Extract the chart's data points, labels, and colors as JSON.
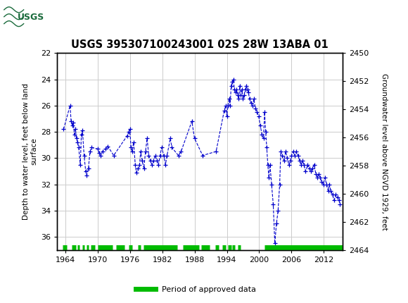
{
  "title": "USGS 395307100243001 02S 28W 13ABA 01",
  "ylabel_left": "Depth to water level, feet below land\nsurface",
  "ylabel_right": "Groundwater level above NGVD 1929, feet",
  "ylim_left": [
    22,
    37
  ],
  "ylim_right": [
    2464,
    2450
  ],
  "xlim": [
    1962.5,
    2015.5
  ],
  "xticks": [
    1964,
    1970,
    1976,
    1982,
    1988,
    1994,
    2000,
    2006,
    2012
  ],
  "yticks_left": [
    22,
    24,
    26,
    28,
    30,
    32,
    34,
    36
  ],
  "yticks_right": [
    2464,
    2462,
    2460,
    2458,
    2456,
    2454,
    2452,
    2450
  ],
  "header_color": "#1a6b3c",
  "plot_color": "#0000cc",
  "approved_color": "#00bb00",
  "background_color": "#ffffff",
  "grid_color": "#cccccc",
  "data_x": [
    1963.7,
    1964.9,
    1965.1,
    1965.3,
    1965.5,
    1965.7,
    1965.9,
    1966.1,
    1966.3,
    1966.5,
    1966.8,
    1967.0,
    1967.2,
    1967.5,
    1967.8,
    1968.0,
    1968.3,
    1968.6,
    1968.9,
    1970.0,
    1970.3,
    1970.6,
    1970.9,
    1971.5,
    1971.9,
    1973.0,
    1975.5,
    1975.8,
    1976.0,
    1976.2,
    1976.4,
    1976.7,
    1977.0,
    1977.2,
    1977.5,
    1977.8,
    1978.0,
    1978.3,
    1978.6,
    1978.9,
    1979.2,
    1979.5,
    1979.8,
    1980.1,
    1980.4,
    1980.7,
    1981.0,
    1981.3,
    1981.6,
    1981.9,
    1982.3,
    1982.6,
    1982.9,
    1983.5,
    1983.8,
    1985.0,
    1985.5,
    1987.5,
    1988.0,
    1989.5,
    1992.0,
    1993.5,
    1993.8,
    1994.0,
    1994.2,
    1994.4,
    1994.6,
    1994.8,
    1995.0,
    1995.2,
    1995.4,
    1995.6,
    1995.8,
    1996.0,
    1996.2,
    1996.4,
    1996.6,
    1996.8,
    1997.0,
    1997.2,
    1997.4,
    1997.6,
    1997.8,
    1998.0,
    1998.2,
    1998.5,
    1998.8,
    1999.0,
    1999.3,
    1999.6,
    1999.9,
    2000.2,
    2000.5,
    2000.8,
    2001.0,
    2001.2,
    2001.4,
    2001.6,
    2001.8,
    2002.0,
    2002.3,
    2002.6,
    2002.9,
    2003.2,
    2003.5,
    2003.8,
    2004.0,
    2004.3,
    2004.6,
    2004.9,
    2005.2,
    2005.5,
    2005.8,
    2006.0,
    2006.3,
    2006.6,
    2006.9,
    2007.2,
    2007.5,
    2007.8,
    2008.0,
    2008.3,
    2008.6,
    2009.0,
    2009.3,
    2009.6,
    2009.9,
    2010.2,
    2010.5,
    2010.8,
    2011.0,
    2011.3,
    2011.6,
    2011.9,
    2012.2,
    2012.5,
    2012.8,
    2013.0,
    2013.3,
    2013.6,
    2013.9,
    2014.2,
    2014.5,
    2014.8,
    2015.0
  ],
  "data_y": [
    27.8,
    26.0,
    27.2,
    27.5,
    27.3,
    28.2,
    27.8,
    28.5,
    28.8,
    29.2,
    30.5,
    28.2,
    27.9,
    29.8,
    31.0,
    31.3,
    30.8,
    29.5,
    29.2,
    29.3,
    29.6,
    29.8,
    29.5,
    29.3,
    29.1,
    29.8,
    28.3,
    28.0,
    27.8,
    29.2,
    29.5,
    28.8,
    30.5,
    31.1,
    30.8,
    30.5,
    29.5,
    30.2,
    30.8,
    29.5,
    28.5,
    29.8,
    30.2,
    30.5,
    30.2,
    29.8,
    30.2,
    30.5,
    29.8,
    29.2,
    29.8,
    30.5,
    29.8,
    28.5,
    29.2,
    29.8,
    29.5,
    27.2,
    28.5,
    29.8,
    29.5,
    26.4,
    26.0,
    26.8,
    26.0,
    25.5,
    26.0,
    24.5,
    24.2,
    24.0,
    24.8,
    25.0,
    24.8,
    25.2,
    25.5,
    24.5,
    25.2,
    24.8,
    25.5,
    25.2,
    24.8,
    24.5,
    24.8,
    25.0,
    25.5,
    25.8,
    26.0,
    25.5,
    26.2,
    26.5,
    26.8,
    27.5,
    28.2,
    28.5,
    26.5,
    28.0,
    29.2,
    30.5,
    31.5,
    30.5,
    32.0,
    33.5,
    36.5,
    35.0,
    34.0,
    32.0,
    29.5,
    29.8,
    30.2,
    29.5,
    30.0,
    30.5,
    30.2,
    29.8,
    29.5,
    29.8,
    29.5,
    29.8,
    30.2,
    30.5,
    30.2,
    30.5,
    31.0,
    30.5,
    30.8,
    31.0,
    30.8,
    30.5,
    31.2,
    31.5,
    31.2,
    31.5,
    31.8,
    32.0,
    31.5,
    32.0,
    32.5,
    32.0,
    32.5,
    32.8,
    33.2,
    32.8,
    33.0,
    33.2,
    33.5
  ],
  "approved_segments": [
    [
      1963.5,
      1964.3
    ],
    [
      1965.2,
      1966.0
    ],
    [
      1966.2,
      1966.6
    ],
    [
      1967.2,
      1967.6
    ],
    [
      1967.9,
      1968.3
    ],
    [
      1968.8,
      1969.5
    ],
    [
      1970.0,
      1972.8
    ],
    [
      1973.5,
      1975.0
    ],
    [
      1975.8,
      1976.5
    ],
    [
      1977.5,
      1978.0
    ],
    [
      1978.5,
      1984.8
    ],
    [
      1985.8,
      1988.8
    ],
    [
      1989.2,
      1990.8
    ],
    [
      1991.8,
      1992.5
    ],
    [
      1993.2,
      1993.8
    ],
    [
      1994.2,
      1994.8
    ],
    [
      1995.0,
      1995.5
    ],
    [
      1996.0,
      1996.5
    ],
    [
      2001.0,
      2015.5
    ]
  ],
  "legend_label": "Period of approved data"
}
